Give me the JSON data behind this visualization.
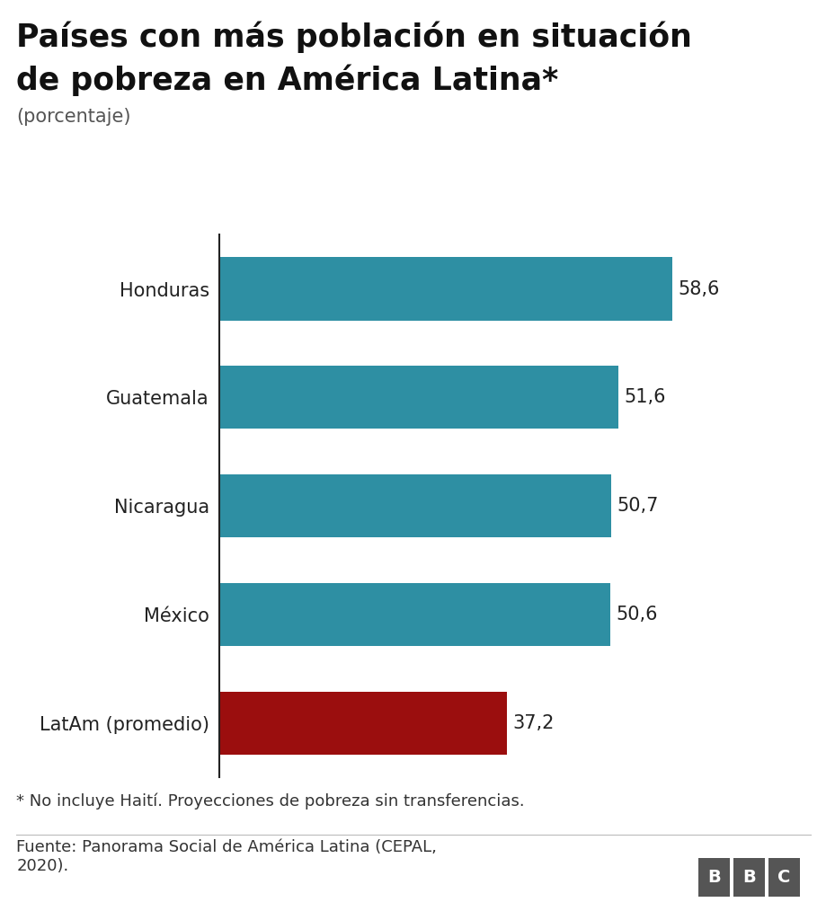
{
  "title_line1": "Países con más población en situación",
  "title_line2": "de pobreza en América Latina*",
  "subtitle": "(porcentaje)",
  "categories": [
    "Honduras",
    "Guatemala",
    "Nicaragua",
    "México",
    "LatAm (promedio)"
  ],
  "values": [
    58.6,
    51.6,
    50.7,
    50.6,
    37.2
  ],
  "bar_colors": [
    "#2e8fa3",
    "#2e8fa3",
    "#2e8fa3",
    "#2e8fa3",
    "#9b0e0e"
  ],
  "value_labels": [
    "58,6",
    "51,6",
    "50,7",
    "50,6",
    "37,2"
  ],
  "xlim": [
    0,
    70
  ],
  "footnote": "* No incluye Haití. Proyecciones de pobreza sin transferencias.",
  "source": "Fuente: Panorama Social de América Latina (CEPAL,\n2020).",
  "background_color": "#ffffff",
  "title_fontsize": 25,
  "subtitle_fontsize": 15,
  "label_fontsize": 15,
  "value_fontsize": 15,
  "footnote_fontsize": 13,
  "source_fontsize": 13,
  "grid_color": "#cccccc",
  "bar_label_color": "#222222",
  "title_color": "#111111",
  "text_color": "#333333"
}
